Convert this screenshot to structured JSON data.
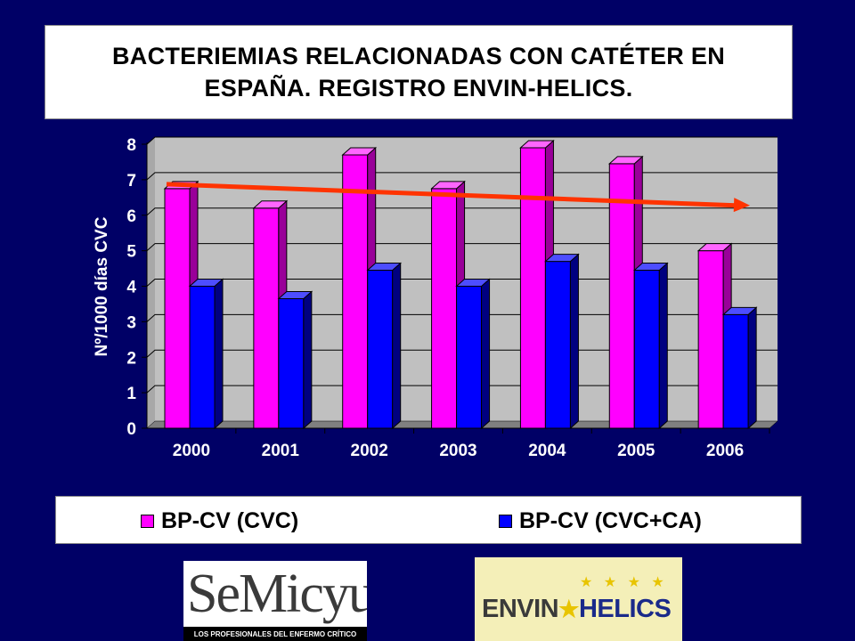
{
  "chart_data": {
    "type": "bar",
    "title_lines": [
      "BACTERIEMIAS RELACIONADAS CON CATÉTER EN",
      "ESPAÑA. REGISTRO ENVIN-HELICS."
    ],
    "ylabel": "Nº/1000 días CVC",
    "xlabel": "",
    "ylim": [
      0,
      8
    ],
    "yticks": [
      "0",
      "1",
      "2",
      "3",
      "4",
      "5",
      "6",
      "7",
      "8"
    ],
    "categories": [
      "2000",
      "2001",
      "2002",
      "2003",
      "2004",
      "2005",
      "2006"
    ],
    "series": [
      {
        "name": "BP-CV (CVC)",
        "color": "#ff00ff",
        "values": [
          6.75,
          6.2,
          7.7,
          6.75,
          7.9,
          7.45,
          5.0
        ]
      },
      {
        "name": "BP-CV (CVC+CA)",
        "color": "#0000ff",
        "values": [
          4.0,
          3.65,
          4.45,
          4.0,
          4.7,
          4.45,
          3.2
        ]
      }
    ],
    "trend_line": {
      "color": "#ff3300",
      "from": {
        "x": "2000",
        "y": 6.8
      },
      "to": {
        "x": "2006",
        "y": 6.2
      }
    },
    "grid": true,
    "legend_position": "bottom"
  },
  "logos": {
    "semicyuc": {
      "main": "SeMicyuc",
      "tagline": "LOS PROFESIONALES DEL ENFERMO CRÍTICO"
    },
    "envin": {
      "left": "ENVIN",
      "right": "HELICS",
      "star": "★",
      "stars": "★ ★ ★ ★"
    }
  },
  "colors": {
    "background": "#000066",
    "plot_wall": "#c0c0c0",
    "floor": "#808080"
  }
}
